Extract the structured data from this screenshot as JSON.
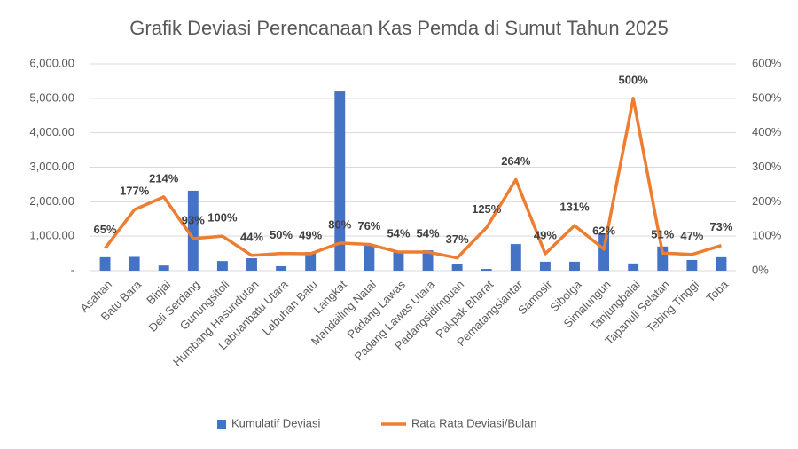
{
  "chart_data": {
    "type": "bar-line",
    "title": "Grafik Deviasi Perencanaan Kas Pemda di Sumut Tahun 2025",
    "categories": [
      "Asahan",
      "Batu Bara",
      "Binjai",
      "Deli Serdang",
      "Gunungsitoli",
      "Humbang Hasundutan",
      "Labuanbatu Utara",
      "Labuhan Batu",
      "Langkat",
      "Mandailing Natal",
      "Padang Lawas",
      "Padang Lawas Utara",
      "Padangsidimpuan",
      "Pakpak Bharat",
      "Pematangsiantar",
      "Samosir",
      "Sibolga",
      "Simalungun",
      "Tanjungbalai",
      "Tapanuli Selatan",
      "Tebing Tinggi",
      "Toba"
    ],
    "series": [
      {
        "name": "Kumulatif Deviasi",
        "type": "bar",
        "color": "#4472c4",
        "values": [
          390,
          400,
          150,
          2320,
          280,
          360,
          130,
          540,
          5200,
          720,
          540,
          590,
          180,
          50,
          770,
          260,
          260,
          1080,
          210,
          700,
          310,
          390
        ]
      },
      {
        "name": "Rata Rata Deviasi/Bulan",
        "type": "line",
        "axis": "y2",
        "color": "#ed7d31",
        "values": [
          65,
          177,
          214,
          93,
          100,
          44,
          50,
          49,
          80,
          76,
          54,
          54,
          37,
          125,
          264,
          49,
          131,
          62,
          500,
          51,
          47,
          73
        ],
        "value_labels": [
          "65%",
          "177%",
          "214%",
          "93%",
          "100%",
          "44%",
          "50%",
          "49%",
          "80%",
          "76%",
          "54%",
          "54%",
          "37%",
          "125%",
          "264%",
          "49%",
          "131%",
          "62%",
          "500%",
          "51%",
          "47%",
          "73%"
        ]
      }
    ],
    "ylim": [
      0,
      6000
    ],
    "yticks": [
      {
        "value": 0,
        "label": "-"
      },
      {
        "value": 1000,
        "label": "1,000.00"
      },
      {
        "value": 2000,
        "label": "2,000.00"
      },
      {
        "value": 3000,
        "label": "3,000.00"
      },
      {
        "value": 4000,
        "label": "4,000.00"
      },
      {
        "value": 5000,
        "label": "5,000.00"
      },
      {
        "value": 6000,
        "label": "6,000.00"
      }
    ],
    "y2lim": [
      0,
      600
    ],
    "y2ticks": [
      {
        "value": 0,
        "label": "0%"
      },
      {
        "value": 100,
        "label": "100%"
      },
      {
        "value": 200,
        "label": "200%"
      },
      {
        "value": 300,
        "label": "300%"
      },
      {
        "value": 400,
        "label": "400%"
      },
      {
        "value": 500,
        "label": "500%"
      },
      {
        "value": 600,
        "label": "600%"
      }
    ],
    "legend": "bottom"
  }
}
